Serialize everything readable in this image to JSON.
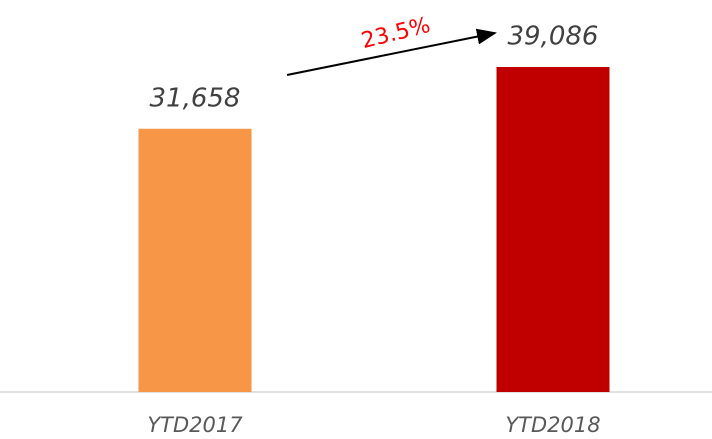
{
  "chart_data": {
    "type": "bar",
    "categories": [
      "YTD2017",
      "YTD2018"
    ],
    "values": [
      31658,
      39086
    ],
    "value_labels": [
      "31,658",
      "39,086"
    ],
    "colors": [
      "#f79646",
      "#c00000"
    ],
    "annotations": [
      {
        "text": "23.5%",
        "color": "#ff0000"
      }
    ]
  }
}
